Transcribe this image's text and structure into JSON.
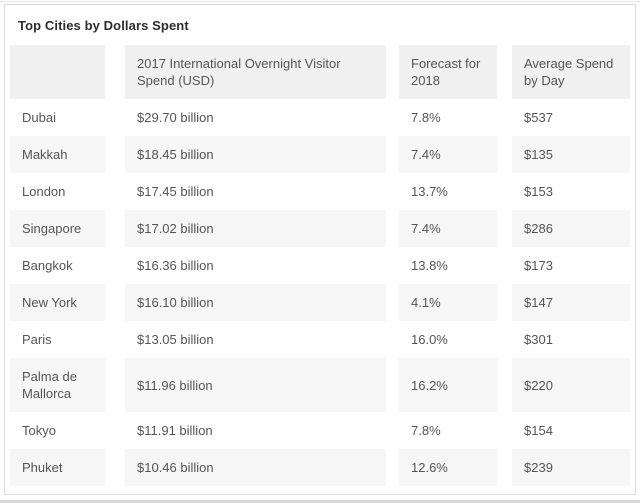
{
  "title": "Top Cities by Dollars Spent",
  "colors": {
    "title_text": "#2d2d2d",
    "cell_text": "#555555",
    "header_bg": "#f0f0f0",
    "zebra_row_bg": "#f6f6f6",
    "card_border": "#dcdcdc"
  },
  "chart_data": {
    "type": "table",
    "title": "Top Cities by Dollars Spent",
    "columns": [
      "",
      "2017 International Overnight Visitor Spend (USD)",
      "Forecast for 2018",
      "Average Spend by Day"
    ],
    "rows": [
      {
        "city": "Dubai",
        "spend_2017": "$29.70 billion",
        "forecast_2018": "7.8%",
        "avg_spend_day": "$537"
      },
      {
        "city": "Makkah",
        "spend_2017": "$18.45 billion",
        "forecast_2018": "7.4%",
        "avg_spend_day": "$135"
      },
      {
        "city": "London",
        "spend_2017": "$17.45 billion",
        "forecast_2018": "13.7%",
        "avg_spend_day": "$153"
      },
      {
        "city": "Singapore",
        "spend_2017": "$17.02 billion",
        "forecast_2018": "7.4%",
        "avg_spend_day": "$286"
      },
      {
        "city": "Bangkok",
        "spend_2017": "$16.36 billion",
        "forecast_2018": "13.8%",
        "avg_spend_day": "$173"
      },
      {
        "city": "New York",
        "spend_2017": "$16.10 billion",
        "forecast_2018": "4.1%",
        "avg_spend_day": "$147"
      },
      {
        "city": "Paris",
        "spend_2017": "$13.05 billion",
        "forecast_2018": "16.0%",
        "avg_spend_day": "$301"
      },
      {
        "city": "Palma de Mallorca",
        "spend_2017": "$11.96 billion",
        "forecast_2018": "16.2%",
        "avg_spend_day": "$220"
      },
      {
        "city": "Tokyo",
        "spend_2017": "$11.91 billion",
        "forecast_2018": "7.8%",
        "avg_spend_day": "$154"
      },
      {
        "city": "Phuket",
        "spend_2017": "$10.46 billion",
        "forecast_2018": "12.6%",
        "avg_spend_day": "$239"
      }
    ]
  }
}
